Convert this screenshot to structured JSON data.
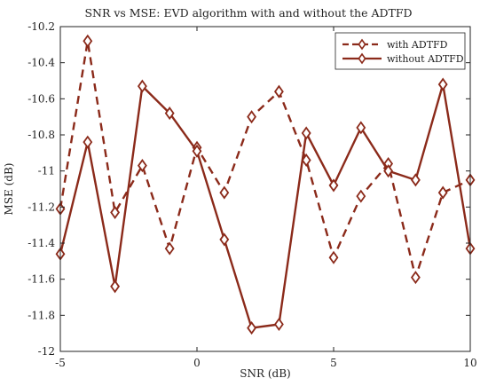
{
  "chart_data": {
    "type": "line",
    "title": "SNR vs MSE: EVD algorithm with and without the ADTFD",
    "xlabel": "SNR (dB)",
    "ylabel": "MSE (dB)",
    "xlim": [
      -5,
      10
    ],
    "ylim": [
      -12,
      -10.2
    ],
    "xticks": [
      -5,
      0,
      5,
      10
    ],
    "yticks": [
      -12,
      -11.8,
      -11.6,
      -11.4,
      -11.2,
      -11,
      -10.8,
      -10.6,
      -10.4,
      -10.2
    ],
    "x": [
      -5,
      -4,
      -3,
      -2,
      -1,
      0,
      1,
      2,
      3,
      4,
      5,
      6,
      7,
      8,
      9,
      10
    ],
    "legend_position": "top-right",
    "series": [
      {
        "name": "with ADTFD",
        "color": "#8b2a1a",
        "style": "dashed",
        "marker": "diamond",
        "values": [
          -11.21,
          -10.28,
          -11.23,
          -10.97,
          -11.43,
          -10.87,
          -11.12,
          -10.7,
          -10.56,
          -10.94,
          -11.48,
          -11.14,
          -10.96,
          -11.59,
          -11.12,
          -11.05
        ]
      },
      {
        "name": "without ADTFD",
        "color": "#8b2a1a",
        "style": "solid",
        "marker": "diamond",
        "values": [
          -11.46,
          -10.84,
          -11.64,
          -10.53,
          -10.68,
          -10.89,
          -11.38,
          -11.87,
          -11.85,
          -10.79,
          -11.08,
          -10.76,
          -11.0,
          -11.05,
          -10.52,
          -11.43
        ]
      }
    ]
  }
}
